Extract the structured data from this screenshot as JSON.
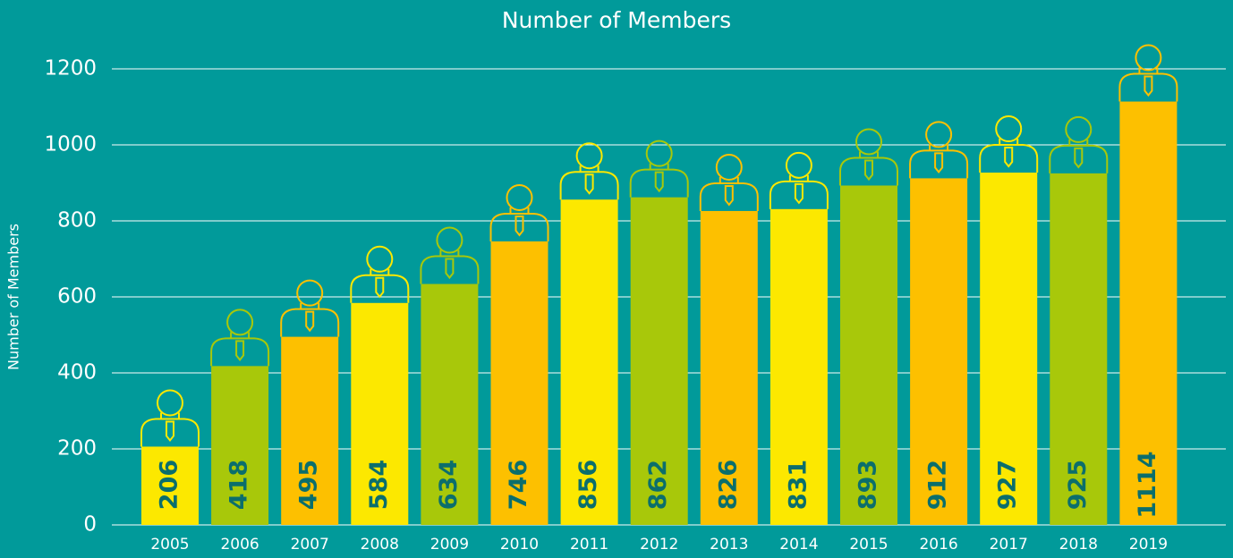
{
  "chart_data": {
    "type": "bar",
    "title": "Number of Members",
    "y_label": "Number of Members",
    "categories": [
      "2005",
      "2006",
      "2007",
      "2008",
      "2009",
      "2010",
      "2011",
      "2012",
      "2013",
      "2014",
      "2015",
      "2016",
      "2017",
      "2018",
      "2019"
    ],
    "values": [
      206,
      418,
      495,
      584,
      634,
      746,
      856,
      862,
      826,
      831,
      893,
      912,
      927,
      925,
      1114
    ],
    "colors": [
      "#fce800",
      "#a8c80a",
      "#fdc000",
      "#fce800",
      "#a8c80a",
      "#fdc000",
      "#fce800",
      "#a8c80a",
      "#fdc000",
      "#fce800",
      "#a8c80a",
      "#fdc000",
      "#fce800",
      "#a8c80a",
      "#fdc000"
    ],
    "label_color": "#0b6e6c",
    "ylim": [
      0,
      1200
    ],
    "yticks": [
      0,
      200,
      400,
      600,
      800,
      1000,
      1200
    ],
    "grid": true
  }
}
